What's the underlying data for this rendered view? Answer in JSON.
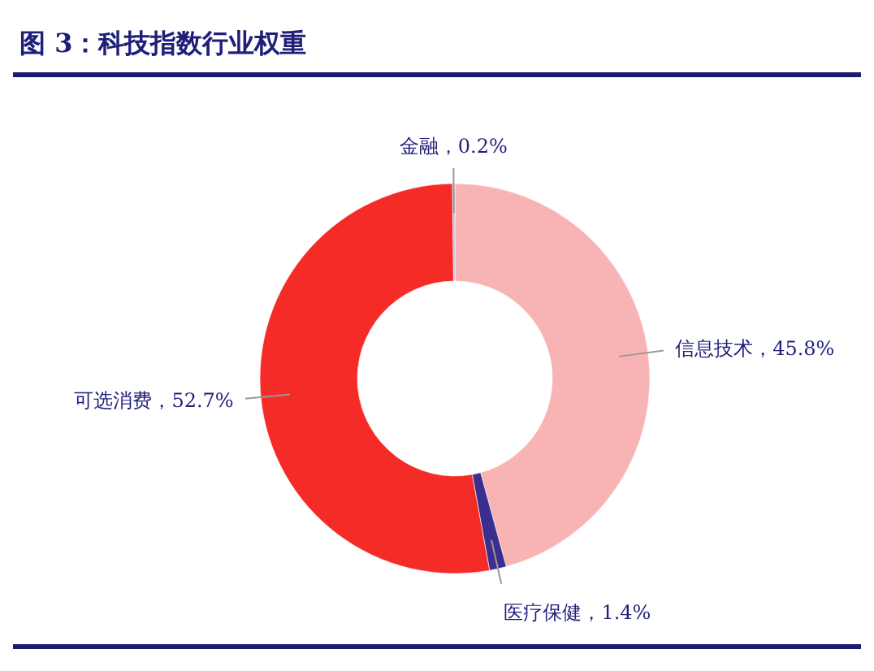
{
  "chart_data": {
    "type": "donut",
    "title": "图 3：科技指数行业权重",
    "categories": [
      "信息技术",
      "医疗保健",
      "可选消费",
      "金融"
    ],
    "values": [
      45.8,
      1.4,
      52.7,
      0.2
    ],
    "value_labels": [
      "，45.8%",
      "，1.4%",
      "，52.7%",
      "，0.2%"
    ],
    "colors": [
      "#f8b4b4",
      "#3b2e8e",
      "#f42b27",
      "#b9b9d9"
    ]
  }
}
